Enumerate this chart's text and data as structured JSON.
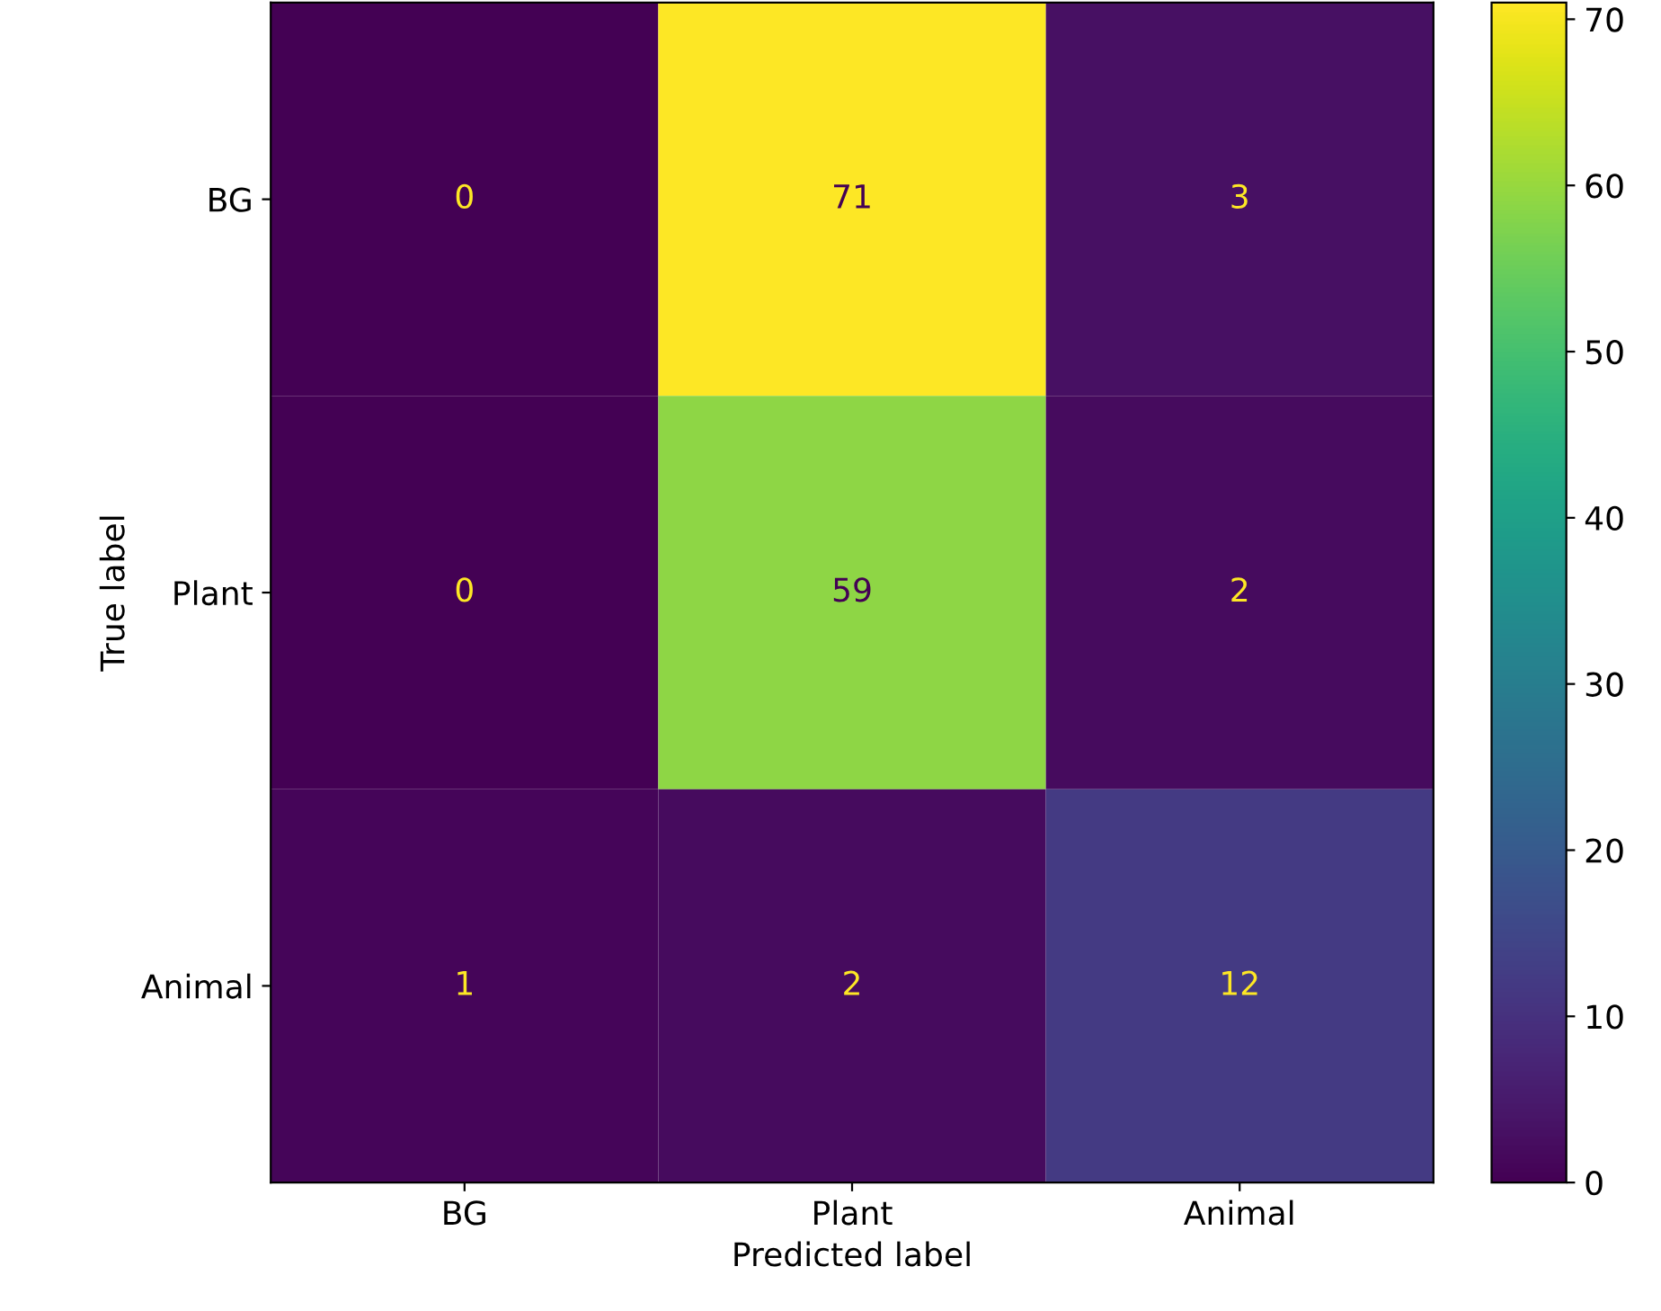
{
  "chart_data": {
    "type": "heatmap",
    "xlabel": "Predicted label",
    "ylabel": "True label",
    "categories": [
      "BG",
      "Plant",
      "Animal"
    ],
    "y_categories": [
      "BG",
      "Plant",
      "Animal"
    ],
    "cells": [
      [
        0,
        71,
        3
      ],
      [
        0,
        59,
        2
      ],
      [
        1,
        2,
        12
      ]
    ],
    "clim": [
      0,
      71
    ],
    "cticks": [
      0,
      10,
      20,
      30,
      40,
      50,
      60,
      70
    ],
    "data_labels": true
  }
}
